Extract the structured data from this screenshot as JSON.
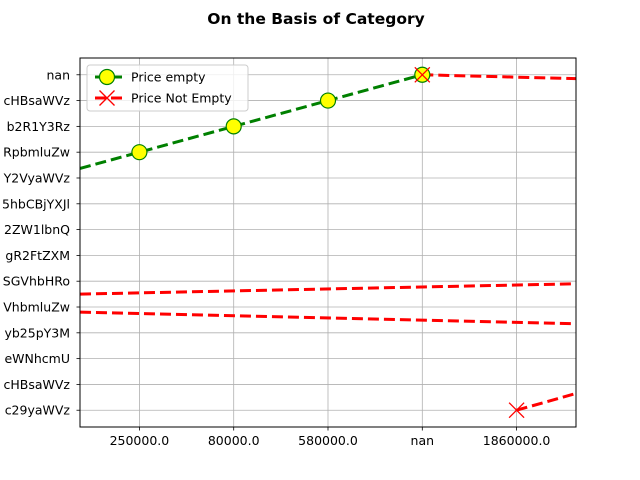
{
  "chart_data": {
    "type": "line",
    "title": "On the Basis of Category",
    "xlabel": "",
    "ylabel": "",
    "x_tick_labels": [
      "250000.0",
      "80000.0",
      "580000.0",
      "nan",
      "1860000.0"
    ],
    "y_tick_labels": [
      "c29yaWVz",
      "cHBsaWVz",
      "eWNhcmU",
      "yb25pY3M",
      "VhbmluZw",
      "SGVhbHRo",
      "gR2FtZXM",
      "2ZW1lbnQ",
      "5hbCBjYXJl",
      "Y2VyaWVz",
      "RpbmluZw",
      "b2R1Y3Rz",
      "cHBsaWVz",
      "nan"
    ],
    "x_range": [
      -0.63,
      4.63
    ],
    "y_range": [
      -0.65,
      13.65
    ],
    "grid": true,
    "legend_position": "top-left",
    "series": [
      {
        "name": "Price empty",
        "style": "dashed",
        "color": "#008000",
        "marker": "circle",
        "marker_face": "#ffff00",
        "points": [
          [
            0,
            10
          ],
          [
            1,
            11
          ],
          [
            2,
            12
          ],
          [
            3,
            13
          ]
        ],
        "line_extends_to_left_edge": true
      },
      {
        "name": "Price Not Empty",
        "style": "dashed",
        "color": "#ff0000",
        "marker": "x",
        "segments": [
          {
            "points": [
              [
                3,
                13
              ],
              [
                4.63,
                12.85
              ]
            ],
            "markers": [
              [
                3,
                13
              ]
            ]
          },
          {
            "points": [
              [
                -0.63,
                4.5
              ],
              [
                4.63,
                4.9
              ]
            ],
            "markers": []
          },
          {
            "points": [
              [
                -0.63,
                3.8
              ],
              [
                4.63,
                3.35
              ]
            ],
            "markers": []
          },
          {
            "points": [
              [
                4,
                0
              ],
              [
                4.63,
                0.65
              ]
            ],
            "markers": [
              [
                4,
                0
              ]
            ]
          }
        ]
      }
    ]
  }
}
